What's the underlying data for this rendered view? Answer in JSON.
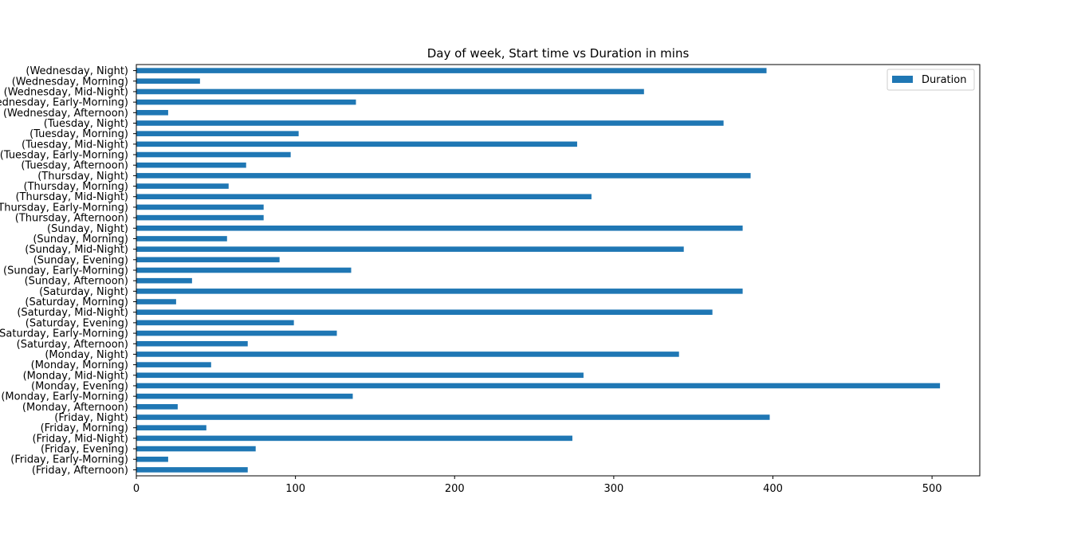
{
  "chart_data": {
    "type": "bar",
    "orientation": "horizontal",
    "title": "Day of week, Start time vs Duration in mins",
    "xlabel": "",
    "ylabel": "",
    "xlim": [
      0,
      530
    ],
    "x_ticks": [
      0,
      100,
      200,
      300,
      400,
      500
    ],
    "grid": false,
    "legend_position": "top-right",
    "bar_color": "#1f77b4",
    "categories": [
      "(Wednesday, Night)",
      "(Wednesday, Morning)",
      "(Wednesday, Mid-Night)",
      "(Wednesday, Early-Morning)",
      "(Wednesday, Afternoon)",
      "(Tuesday, Night)",
      "(Tuesday, Morning)",
      "(Tuesday, Mid-Night)",
      "(Tuesday, Early-Morning)",
      "(Tuesday, Afternoon)",
      "(Thursday, Night)",
      "(Thursday, Morning)",
      "(Thursday, Mid-Night)",
      "(Thursday, Early-Morning)",
      "(Thursday, Afternoon)",
      "(Sunday, Night)",
      "(Sunday, Morning)",
      "(Sunday, Mid-Night)",
      "(Sunday, Evening)",
      "(Sunday, Early-Morning)",
      "(Sunday, Afternoon)",
      "(Saturday, Night)",
      "(Saturday, Morning)",
      "(Saturday, Mid-Night)",
      "(Saturday, Evening)",
      "(Saturday, Early-Morning)",
      "(Saturday, Afternoon)",
      "(Monday, Night)",
      "(Monday, Morning)",
      "(Monday, Mid-Night)",
      "(Monday, Evening)",
      "(Monday, Early-Morning)",
      "(Monday, Afternoon)",
      "(Friday, Night)",
      "(Friday, Morning)",
      "(Friday, Mid-Night)",
      "(Friday, Evening)",
      "(Friday, Early-Morning)",
      "(Friday, Afternoon)"
    ],
    "series": [
      {
        "name": "Duration",
        "values": [
          396,
          40,
          319,
          138,
          20,
          369,
          102,
          277,
          97,
          69,
          386,
          58,
          286,
          80,
          80,
          381,
          57,
          344,
          90,
          135,
          35,
          381,
          25,
          362,
          99,
          126,
          70,
          341,
          47,
          281,
          505,
          136,
          26,
          398,
          44,
          274,
          75,
          20,
          70
        ]
      }
    ]
  }
}
